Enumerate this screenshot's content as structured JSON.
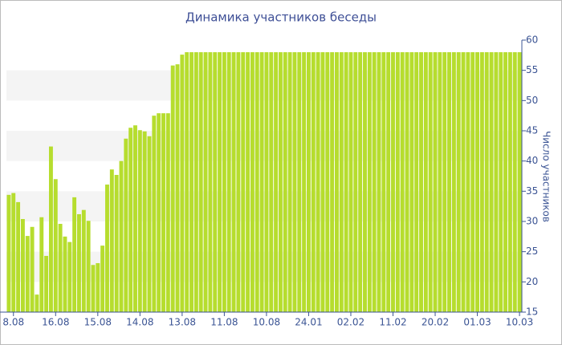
{
  "chart_data": {
    "type": "bar",
    "title": "Динамика участников беседы",
    "y_label": "Число участников",
    "categories": [
      null,
      "8.08",
      null,
      null,
      null,
      null,
      null,
      null,
      null,
      null,
      "16.08",
      null,
      null,
      null,
      null,
      null,
      null,
      null,
      null,
      "15.08",
      null,
      null,
      null,
      null,
      null,
      null,
      null,
      null,
      "14.08",
      null,
      null,
      null,
      null,
      null,
      null,
      null,
      null,
      "13.08",
      null,
      null,
      null,
      null,
      null,
      null,
      null,
      null,
      "11.08",
      null,
      null,
      null,
      null,
      null,
      null,
      null,
      null,
      "10.08",
      null,
      null,
      null,
      null,
      null,
      null,
      null,
      null,
      "24.01",
      null,
      null,
      null,
      null,
      null,
      null,
      null,
      null,
      "02.02",
      null,
      null,
      null,
      null,
      null,
      null,
      null,
      null,
      "11.02",
      null,
      null,
      null,
      null,
      null,
      null,
      null,
      null,
      "20.02",
      null,
      null,
      null,
      null,
      null,
      null,
      null,
      null,
      "01.03",
      null,
      null,
      null,
      null,
      null,
      null,
      null,
      null,
      "10.03"
    ],
    "values": [
      34.4,
      34.7,
      33.2,
      30.4,
      27.6,
      29.1,
      17.9,
      30.7,
      24.3,
      42.4,
      37.0,
      29.6,
      27.5,
      26.6,
      34.0,
      31.2,
      31.9,
      30.1,
      22.8,
      23.1,
      26.0,
      36.1,
      38.6,
      37.7,
      40.0,
      43.7,
      45.5,
      45.9,
      45.1,
      44.9,
      44.1,
      47.5,
      47.9,
      47.9,
      47.9,
      55.8,
      56.0,
      57.6,
      58,
      58,
      58,
      58,
      58,
      58,
      58,
      58,
      58,
      58,
      58,
      58,
      58,
      58,
      58,
      58,
      58,
      58,
      58,
      58,
      58,
      58,
      58,
      58,
      58,
      58,
      58,
      58,
      58,
      58,
      58,
      58,
      58,
      58,
      58,
      58,
      58,
      58,
      58,
      58,
      58,
      58,
      58,
      58,
      58,
      58,
      58,
      58,
      58,
      58,
      58,
      58,
      58,
      58,
      58,
      58,
      58,
      58,
      58,
      58,
      58,
      58,
      58,
      58,
      58,
      58,
      58,
      58,
      58,
      58,
      58,
      58
    ],
    "color": "#b6dd2e",
    "ylim": [
      15,
      60
    ],
    "yticks": [
      15,
      20,
      25,
      30,
      35,
      40,
      45,
      50,
      55,
      60
    ],
    "grid_bands": true
  }
}
